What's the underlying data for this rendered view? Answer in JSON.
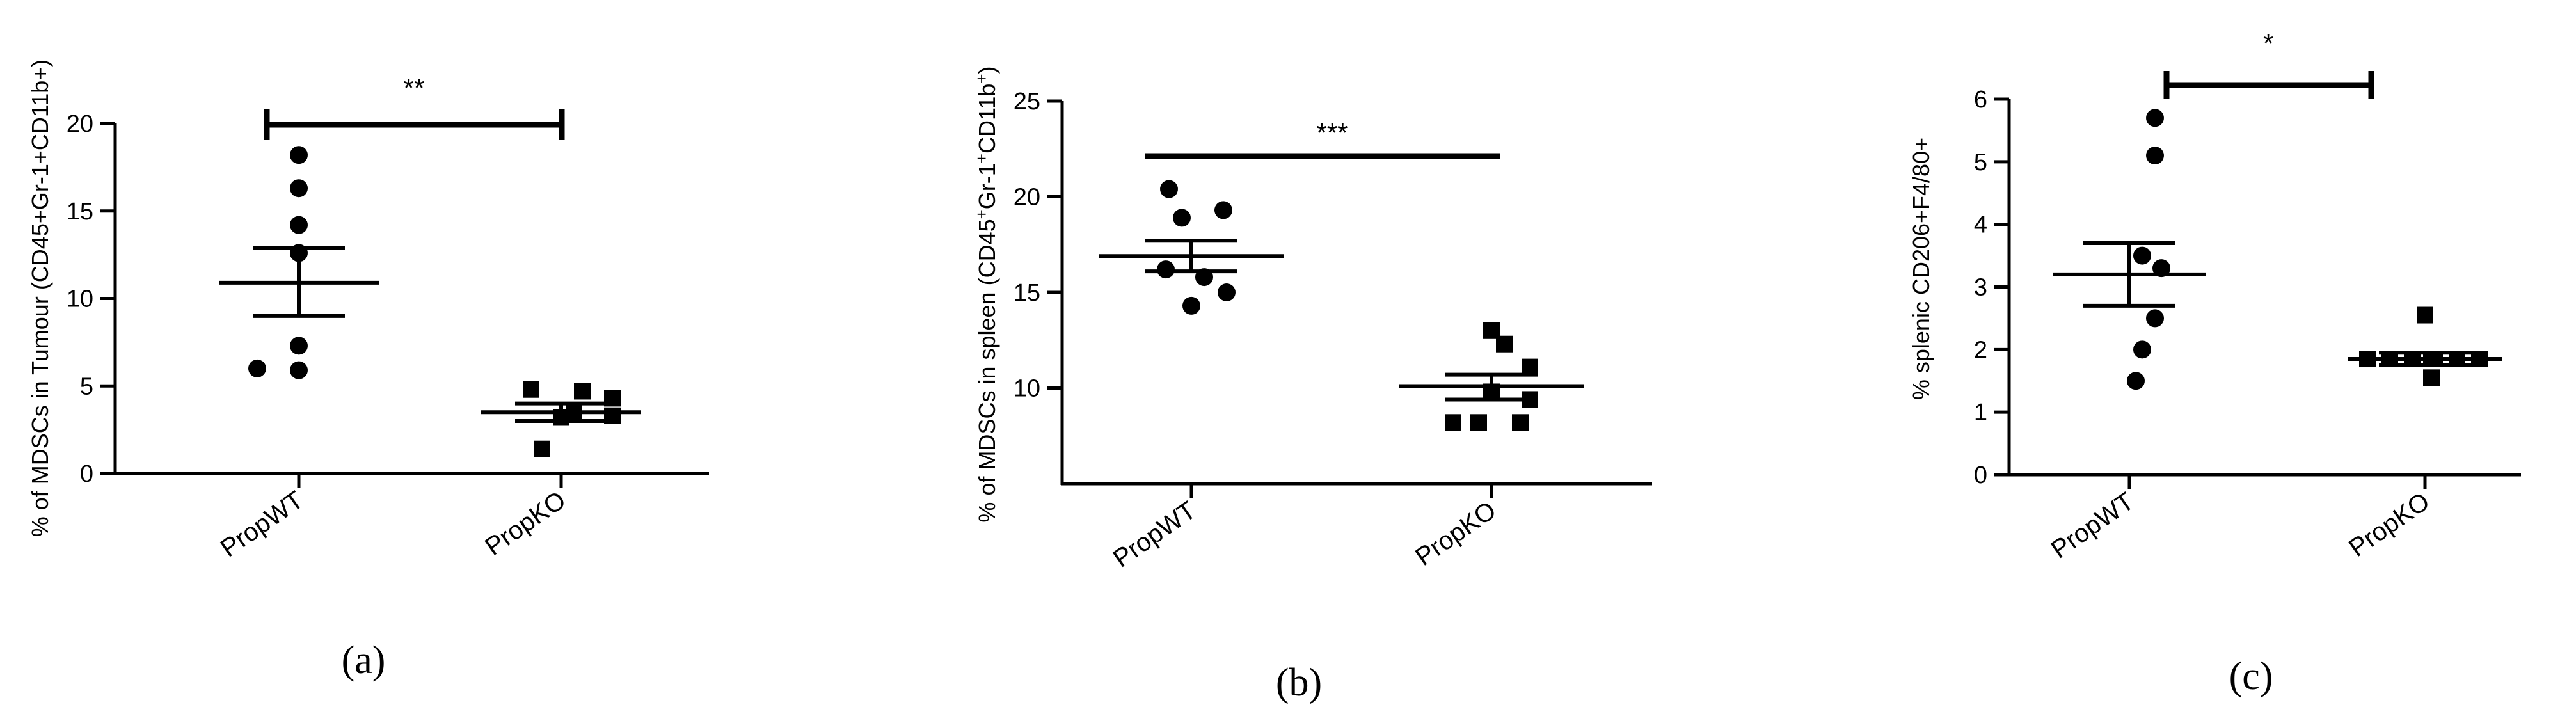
{
  "chart_data": [
    {
      "type": "scatter",
      "ylabel": "% of MDSCs in Tumour (CD45+Gr-1+CD11b+)",
      "ylim": [
        0,
        20
      ],
      "yticks": [
        0,
        5,
        10,
        15,
        20
      ],
      "categories": [
        "PropWT",
        "PropKO"
      ],
      "series": [
        {
          "category": "PropWT",
          "marker": "circle",
          "values": [
            18.2,
            16.3,
            14.2,
            12.6,
            7.3,
            6.0,
            5.9
          ],
          "mean": 10.9,
          "sem_low": 9.0,
          "sem_high": 12.9
        },
        {
          "category": "PropKO",
          "marker": "square",
          "values": [
            4.8,
            4.7,
            4.3,
            3.5,
            3.3,
            3.2,
            1.4
          ],
          "mean": 3.5,
          "sem_low": 3.0,
          "sem_high": 4.0
        }
      ],
      "significance": "**",
      "panel": "(a)"
    },
    {
      "type": "scatter",
      "ylabel_parts": {
        "a": "% of MDSCs in spleen (CD45",
        "b": "+",
        "c": "Gr-1",
        "d": "+",
        "e": "CD11b",
        "f": "+",
        "g": ")"
      },
      "ylim": [
        5,
        25
      ],
      "yticks": [
        10,
        15,
        20,
        25
      ],
      "categories": [
        "PropWT",
        "PropKO"
      ],
      "series": [
        {
          "category": "PropWT",
          "marker": "circle",
          "values": [
            20.4,
            19.3,
            18.9,
            16.2,
            15.8,
            15.0,
            14.3
          ],
          "mean": 16.9,
          "sem_low": 16.1,
          "sem_high": 17.7
        },
        {
          "category": "PropKO",
          "marker": "square",
          "values": [
            13.0,
            12.3,
            11.1,
            9.8,
            9.4,
            8.2,
            8.2,
            8.2
          ],
          "mean": 10.1,
          "sem_low": 9.4,
          "sem_high": 10.7
        }
      ],
      "significance": "***",
      "panel": "(b)"
    },
    {
      "type": "scatter",
      "ylabel": "% splenic CD206+F4/80+",
      "ylim": [
        0,
        6
      ],
      "yticks": [
        0,
        1,
        2,
        3,
        4,
        5,
        6
      ],
      "categories": [
        "PropWT",
        "PropKO"
      ],
      "series": [
        {
          "category": "PropWT",
          "marker": "circle",
          "values": [
            5.7,
            5.1,
            3.5,
            3.3,
            2.5,
            2.0,
            1.5
          ],
          "mean": 3.2,
          "sem_low": 2.7,
          "sem_high": 3.7
        },
        {
          "category": "PropKO",
          "marker": "square",
          "values": [
            2.55,
            1.85,
            1.85,
            1.85,
            1.85,
            1.85,
            1.85,
            1.55
          ],
          "mean": 1.85,
          "sem_low": 1.75,
          "sem_high": 1.95
        }
      ],
      "significance": "*",
      "panel": "(c)"
    }
  ]
}
